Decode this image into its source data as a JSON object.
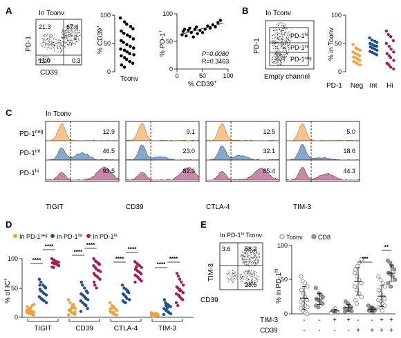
{
  "panels": {
    "A": "A",
    "B": "B",
    "C": "C",
    "D": "D",
    "E": "E"
  },
  "A": {
    "gate_label": "In Tconv",
    "xaxis": "CD39",
    "yaxis": "PD-1",
    "quadrants": {
      "ul": "21.3",
      "ur": "67.4",
      "ll": "11.0",
      "lr": "0.3"
    },
    "dot_ylabel": "% CD39",
    "dot_ylabel_sup": "+",
    "dot_xlabel": "Tconv",
    "dot_ticks": [
      "0",
      "50",
      "100"
    ],
    "corr_ylabel": "% PD-1",
    "corr_ylabel_sup": "+",
    "corr_xlabel": "% CD39",
    "corr_xlabel_sup": "+",
    "corr_p": "P=0.0080",
    "corr_r": "R=0.3463",
    "corr_yticks": [
      "0",
      "50",
      "100"
    ],
    "corr_xticks": [
      "0",
      "50",
      "100"
    ]
  },
  "B": {
    "gate_label": "In Tconv",
    "xaxis": "Empty channel",
    "yaxis": "PD-1",
    "gates": [
      {
        "base": "PD-1",
        "sup": "hi"
      },
      {
        "base": "PD-1",
        "sup": "int"
      },
      {
        "base": "PD-1",
        "sup": "neg"
      }
    ],
    "dot_ylabel": "% in Tconv",
    "dot_ticks": [
      "0",
      "50",
      "100"
    ],
    "dot_xprefix": "PD-1",
    "dot_categories": [
      "Neg",
      "Int",
      "Hi"
    ]
  },
  "C": {
    "gate_label": "In Tconv",
    "rows": [
      {
        "base": "PD-1",
        "sup": "neg"
      },
      {
        "base": "PD-1",
        "sup": "int"
      },
      {
        "base": "PD-1",
        "sup": "hi"
      }
    ],
    "markers": [
      "TIGIT",
      "CD39",
      "CTLA-4",
      "TIM-3"
    ],
    "values": [
      [
        "12.9",
        "46.5",
        "93.5"
      ],
      [
        "9.1",
        "23.0",
        "82.3"
      ],
      [
        "12.5",
        "32.1",
        "85.4"
      ],
      [
        "5.0",
        "18.6",
        "44.3"
      ]
    ]
  },
  "D": {
    "legend": [
      {
        "base": "In PD-1",
        "sup": "neg",
        "color": "#f0a040"
      },
      {
        "base": "In PD-1",
        "sup": "int",
        "color": "#1f4e8c"
      },
      {
        "base": "In PD-1",
        "sup": "hi",
        "color": "#a0215a"
      }
    ],
    "ylabel": "% of IC",
    "ylabel_sup": "+",
    "yticks": [
      "0",
      "50",
      "100"
    ],
    "categories": [
      "TIGIT",
      "CD39",
      "CTLA-4",
      "TIM-3"
    ],
    "sig": "****"
  },
  "E": {
    "gate_label": "In PD-1",
    "gate_label_sup": "hi",
    "gate_label_suffix": " Tconv",
    "xaxis": "CD39",
    "yaxis": "TIM-3",
    "quadrants": {
      "ul": "3.6",
      "ur": "58.2",
      "lr": "28.6"
    },
    "legend": [
      {
        "label": "Tconv",
        "type": "open"
      },
      {
        "label": "CD8",
        "type": "filled"
      }
    ],
    "ylabel": "% in PD-1",
    "ylabel_sup": "hi",
    "yticks": [
      "0",
      "50",
      "100"
    ],
    "row1_label": "TIM-3",
    "row2_label": "CD39",
    "row1": [
      "-",
      "-",
      "+",
      "+",
      "-",
      "-",
      "+",
      "+"
    ],
    "row2": [
      "-",
      "-",
      "-",
      "-",
      "+",
      "+",
      "+",
      "+"
    ],
    "sig": [
      {
        "text": "***"
      },
      {
        "text": "**"
      }
    ]
  },
  "chart_data": [
    {
      "type": "scatter",
      "panel": "A-dotplot",
      "ylabel": "% CD39+",
      "xlabel": "Tconv",
      "ylim": [
        0,
        100
      ],
      "values": [
        95,
        88,
        84,
        80,
        76,
        72,
        68,
        65,
        62,
        58,
        55,
        52,
        48,
        45,
        42,
        40,
        38,
        35,
        32,
        30,
        28,
        25,
        22,
        18,
        15,
        12,
        8
      ]
    },
    {
      "type": "scatter",
      "panel": "A-correlation",
      "xlabel": "% CD39+",
      "ylabel": "% PD-1+",
      "xlim": [
        0,
        100
      ],
      "ylim": [
        0,
        100
      ],
      "x": [
        10,
        12,
        15,
        18,
        22,
        25,
        28,
        32,
        35,
        38,
        40,
        45,
        50,
        55,
        60,
        65,
        70,
        75,
        80,
        85
      ],
      "y": [
        62,
        68,
        72,
        60,
        70,
        74,
        66,
        58,
        72,
        76,
        64,
        70,
        66,
        72,
        78,
        74,
        80,
        76,
        84,
        88
      ],
      "P": "0.0080",
      "R": "0.3463"
    },
    {
      "type": "scatter",
      "panel": "B-dotplot",
      "ylabel": "% in Tconv",
      "ylim": [
        0,
        100
      ],
      "categories": [
        "Neg",
        "Int",
        "Hi"
      ],
      "series": [
        {
          "color": "#f0a040",
          "values": [
            48,
            42,
            40,
            38,
            35,
            32,
            30,
            28,
            26,
            24,
            22,
            20,
            18,
            16,
            14,
            12
          ]
        },
        {
          "color": "#1f4e8c",
          "values": [
            60,
            56,
            54,
            52,
            50,
            48,
            46,
            45,
            44,
            42,
            40,
            38,
            36,
            34,
            32,
            30
          ]
        },
        {
          "color": "#a0215a",
          "values": [
            72,
            66,
            62,
            55,
            50,
            45,
            40,
            35,
            32,
            28,
            25,
            20,
            15,
            12,
            8,
            5
          ]
        }
      ]
    },
    {
      "type": "scatter",
      "panel": "D",
      "ylabel": "% of IC+",
      "ylim": [
        0,
        100
      ],
      "categories": [
        "TIGIT",
        "CD39",
        "CTLA-4",
        "TIM-3"
      ],
      "series": [
        {
          "color": "#f0a040",
          "values": [
            [
              18,
              15,
              12,
              10,
              9,
              8,
              7,
              6,
              5,
              4,
              12,
              14,
              16,
              20,
              22,
              10,
              8
            ],
            [
              30,
              25,
              20,
              18,
              15,
              12,
              10,
              8,
              6,
              5,
              4,
              14,
              16,
              22,
              9
            ],
            [
              25,
              20,
              18,
              15,
              12,
              10,
              8,
              6,
              5,
              4,
              14,
              16,
              9
            ],
            [
              8,
              6,
              5,
              4,
              3,
              3,
              2,
              2,
              7,
              5,
              4,
              6,
              3
            ]
          ]
        },
        {
          "color": "#1f4e8c",
          "values": [
            [
              65,
              60,
              55,
              52,
              50,
              48,
              45,
              42,
              40,
              38,
              35,
              32,
              30,
              28,
              25,
              55,
              45
            ],
            [
              60,
              55,
              50,
              45,
              42,
              40,
              38,
              35,
              32,
              30,
              28,
              25,
              22,
              20,
              15,
              10
            ],
            [
              55,
              50,
              48,
              45,
              42,
              40,
              38,
              35,
              32,
              30,
              28,
              26,
              25,
              44
            ],
            [
              30,
              25,
              22,
              20,
              18,
              15,
              12,
              10,
              8,
              6,
              5,
              20,
              16
            ]
          ]
        },
        {
          "color": "#a0215a",
          "values": [
            [
              100,
              98,
              96,
              95,
              94,
              93,
              92,
              91,
              90,
              88,
              86,
              85,
              96,
              94
            ],
            [
              100,
              96,
              94,
              92,
              90,
              88,
              85,
              82,
              80,
              78,
              75,
              72,
              70,
              68,
              65,
              60,
              55,
              50,
              92
            ],
            [
              95,
              92,
              90,
              88,
              85,
              82,
              80,
              78,
              76,
              74,
              72,
              70,
              68,
              65,
              62,
              60,
              86
            ],
            [
              75,
              70,
              65,
              60,
              55,
              52,
              50,
              48,
              45,
              42,
              40,
              38,
              35,
              32,
              30,
              25,
              20,
              46
            ]
          ]
        }
      ]
    },
    {
      "type": "scatter",
      "panel": "E-dotplot",
      "ylabel": "% in PD-1hi",
      "ylim": [
        0,
        100
      ],
      "series": [
        {
          "name": "Tconv",
          "values": [
            [
              55,
              48,
              45,
              40,
              35,
              30,
              25,
              20,
              18,
              15,
              12,
              10,
              8,
              5,
              2,
              0
            ],
            [
              2,
              5,
              8,
              3,
              1,
              6
            ],
            [
              60,
              70,
              75,
              80,
              65,
              55,
              50,
              45,
              40,
              35,
              30,
              25,
              20,
              15
            ],
            [
              55,
              50,
              45,
              40,
              35,
              30,
              25,
              22,
              20,
              18,
              15,
              12,
              10,
              8,
              5
            ]
          ]
        },
        {
          "name": "CD8",
          "values": [
            [
              38,
              30,
              28,
              25,
              22,
              20,
              18,
              15,
              12,
              10
            ],
            [
              18,
              15,
              12,
              10,
              8,
              6,
              5,
              4,
              3
            ],
            [
              12,
              10,
              8,
              6,
              5,
              4,
              3
            ],
            [
              78,
              75,
              70,
              65,
              60,
              58,
              55,
              50,
              45,
              40
            ]
          ]
        }
      ]
    }
  ]
}
